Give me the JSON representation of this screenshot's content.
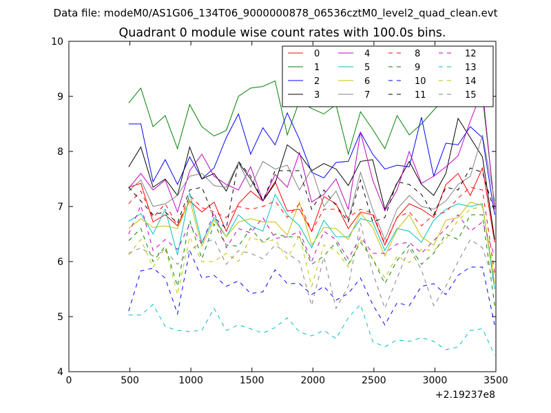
{
  "figure": {
    "suptitle": "Data file: modeM0/AS1G06_134T06_9000000878_06536cztM0_level2_quad_clean.evt"
  },
  "chart_data": {
    "type": "line",
    "title": "Quadrant 0 module wise count rates with 100.0s bins.",
    "xlabel": "",
    "ylabel": "",
    "xlim": [
      0,
      3500
    ],
    "ylim": [
      4,
      10
    ],
    "x_ticks": [
      0,
      500,
      1000,
      1500,
      2000,
      2500,
      3000,
      3500
    ],
    "y_ticks": [
      4,
      5,
      6,
      7,
      8,
      9,
      10
    ],
    "x_offset_label": "+2.19237e8",
    "grid": false,
    "legend": {
      "placement": "top-right",
      "columns": 4
    },
    "x": [
      490,
      590,
      690,
      790,
      890,
      990,
      1090,
      1190,
      1290,
      1390,
      1490,
      1590,
      1690,
      1790,
      1890,
      1990,
      2090,
      2190,
      2290,
      2390,
      2490,
      2590,
      2690,
      2790,
      2890,
      2990,
      3090,
      3190,
      3290,
      3390,
      3490
    ],
    "series": [
      {
        "name": "0",
        "color": "#ff0000",
        "dash": "solid",
        "values": [
          7.35,
          7.42,
          6.72,
          6.85,
          6.65,
          7.1,
          6.9,
          7.08,
          6.55,
          7.05,
          7.28,
          7.1,
          7.45,
          6.92,
          6.95,
          6.55,
          7.18,
          7.05,
          6.6,
          6.9,
          6.85,
          6.3,
          6.8,
          7.05,
          6.95,
          6.8,
          7.4,
          7.6,
          7.2,
          7.7,
          6.35
        ]
      },
      {
        "name": "1",
        "color": "#008000",
        "dash": "solid",
        "values": [
          8.88,
          9.15,
          8.45,
          8.65,
          8.05,
          8.85,
          8.45,
          8.28,
          8.38,
          9.0,
          9.15,
          9.18,
          9.28,
          8.3,
          8.92,
          8.78,
          8.68,
          8.85,
          7.95,
          8.72,
          8.4,
          8.05,
          8.65,
          8.3,
          8.5,
          8.75,
          8.98,
          9.05,
          9.08,
          9.0,
          7.0
        ]
      },
      {
        "name": "2",
        "color": "#0000ff",
        "dash": "solid",
        "values": [
          8.5,
          8.5,
          7.45,
          7.85,
          7.4,
          7.9,
          7.5,
          7.7,
          8.25,
          8.68,
          7.95,
          8.43,
          8.12,
          8.7,
          8.22,
          7.62,
          7.52,
          7.8,
          7.82,
          8.35,
          7.95,
          7.68,
          7.75,
          7.72,
          8.62,
          7.55,
          8.15,
          8.12,
          8.45,
          8.25,
          6.85
        ]
      },
      {
        "name": "3",
        "color": "#000000",
        "dash": "solid",
        "values": [
          7.72,
          8.08,
          7.35,
          7.5,
          7.2,
          8.08,
          7.5,
          7.6,
          7.28,
          7.8,
          7.5,
          7.1,
          7.42,
          8.12,
          7.95,
          7.65,
          7.78,
          7.68,
          7.38,
          7.82,
          7.85,
          6.95,
          7.42,
          7.82,
          7.4,
          7.2,
          7.6,
          8.6,
          8.25,
          7.9,
          6.4
        ]
      },
      {
        "name": "4",
        "color": "#bf00bf",
        "dash": "solid",
        "values": [
          7.33,
          7.6,
          7.3,
          7.48,
          6.9,
          7.65,
          7.95,
          7.55,
          7.4,
          7.3,
          7.72,
          7.1,
          7.58,
          7.35,
          7.98,
          7.08,
          7.22,
          7.5,
          6.95,
          8.35,
          7.48,
          6.92,
          7.3,
          8.0,
          7.42,
          7.55,
          7.72,
          7.92,
          8.55,
          9.12,
          6.95
        ]
      },
      {
        "name": "5",
        "color": "#00bfbf",
        "dash": "solid",
        "values": [
          6.73,
          6.87,
          6.5,
          6.95,
          6.12,
          7.25,
          6.35,
          6.8,
          6.45,
          6.85,
          6.65,
          6.55,
          7.22,
          6.85,
          6.65,
          6.25,
          6.75,
          6.45,
          6.45,
          6.78,
          6.72,
          6.2,
          6.6,
          6.55,
          6.35,
          6.75,
          6.95,
          7.05,
          7.0,
          7.05,
          5.5
        ]
      },
      {
        "name": "6",
        "color": "#bfbf00",
        "dash": "solid",
        "values": [
          6.6,
          6.78,
          6.62,
          6.65,
          6.6,
          7.12,
          6.28,
          6.75,
          6.45,
          6.72,
          6.78,
          6.72,
          6.72,
          6.48,
          7.08,
          6.3,
          6.62,
          6.6,
          6.4,
          6.88,
          6.62,
          6.1,
          6.58,
          6.85,
          6.45,
          6.3,
          6.75,
          6.8,
          7.08,
          7.02,
          5.6
        ]
      },
      {
        "name": "7",
        "color": "#808080",
        "dash": "solid",
        "values": [
          7.28,
          7.48,
          7.0,
          7.05,
          7.2,
          7.55,
          7.6,
          7.38,
          7.35,
          7.8,
          7.35,
          7.82,
          7.68,
          7.75,
          7.3,
          7.68,
          7.0,
          7.28,
          6.75,
          7.62,
          6.95,
          6.4,
          6.95,
          7.2,
          7.0,
          6.95,
          7.1,
          7.4,
          7.55,
          8.3,
          7.1
        ]
      },
      {
        "name": "8",
        "color": "#ff0000",
        "dash": "dashed",
        "values": [
          7.05,
          7.28,
          6.8,
          7.05,
          6.65,
          7.2,
          6.98,
          6.9,
          6.8,
          7.0,
          6.95,
          7.0,
          7.1,
          6.8,
          7.05,
          6.55,
          6.95,
          6.95,
          6.8,
          6.95,
          6.88,
          6.32,
          6.8,
          6.9,
          6.65,
          6.85,
          6.9,
          7.15,
          7.35,
          7.3,
          5.8
        ]
      },
      {
        "name": "9",
        "color": "#008000",
        "dash": "dashed",
        "values": [
          6.38,
          6.6,
          6.0,
          6.28,
          5.55,
          6.75,
          6.05,
          6.68,
          6.3,
          6.28,
          6.6,
          6.35,
          6.5,
          6.45,
          6.45,
          5.95,
          6.1,
          6.35,
          5.95,
          6.35,
          6.05,
          5.6,
          6.02,
          6.3,
          5.95,
          6.15,
          6.5,
          6.4,
          6.85,
          6.85,
          5.2
        ]
      },
      {
        "name": "10",
        "color": "#0000ff",
        "dash": "dashed",
        "values": [
          5.1,
          5.83,
          5.88,
          5.7,
          5.05,
          6.2,
          5.7,
          5.75,
          5.55,
          5.65,
          5.42,
          5.45,
          5.85,
          5.6,
          5.6,
          5.4,
          5.55,
          5.3,
          5.42,
          5.7,
          5.22,
          4.85,
          5.25,
          5.2,
          5.55,
          5.6,
          5.4,
          5.75,
          5.9,
          5.9,
          4.85
        ]
      },
      {
        "name": "11",
        "color": "#000000",
        "dash": "dashed",
        "values": [
          7.35,
          7.1,
          6.85,
          6.9,
          6.7,
          7.3,
          7.35,
          6.8,
          6.6,
          7.82,
          7.55,
          7.1,
          7.65,
          7.65,
          7.65,
          6.95,
          7.3,
          7.02,
          6.72,
          7.48,
          6.72,
          6.8,
          7.45,
          7.4,
          7.22,
          6.85,
          7.35,
          7.3,
          7.7,
          7.62,
          6.9
        ]
      },
      {
        "name": "12",
        "color": "#bf00bf",
        "dash": "dashed",
        "values": [
          6.5,
          7.02,
          6.2,
          6.4,
          6.22,
          6.68,
          6.32,
          6.9,
          6.25,
          6.6,
          6.52,
          6.8,
          6.42,
          6.45,
          6.55,
          6.0,
          6.55,
          6.4,
          6.05,
          6.45,
          6.15,
          6.15,
          6.32,
          6.35,
          6.15,
          6.38,
          6.6,
          6.85,
          6.55,
          6.72,
          6.1
        ]
      },
      {
        "name": "13",
        "color": "#00bfbf",
        "dash": "dashed",
        "values": [
          5.03,
          5.03,
          5.22,
          4.82,
          4.75,
          4.73,
          4.75,
          5.15,
          4.75,
          4.85,
          4.78,
          4.7,
          4.8,
          4.98,
          4.72,
          4.65,
          4.75,
          4.6,
          4.98,
          5.22,
          4.55,
          4.45,
          4.58,
          4.55,
          4.62,
          4.55,
          4.4,
          4.45,
          4.75,
          4.78,
          4.3
        ]
      },
      {
        "name": "14",
        "color": "#bfbf00",
        "dash": "dashed",
        "values": [
          6.12,
          6.4,
          5.9,
          6.25,
          5.4,
          6.45,
          6.0,
          6.0,
          6.15,
          6.0,
          6.45,
          6.35,
          6.4,
          6.05,
          6.48,
          5.55,
          6.3,
          6.2,
          5.9,
          6.4,
          6.05,
          5.7,
          6.1,
          5.98,
          6.22,
          6.2,
          6.4,
          6.75,
          6.95,
          7.0,
          5.7
        ]
      },
      {
        "name": "15",
        "color": "#808080",
        "dash": "dashed",
        "values": [
          6.15,
          6.25,
          6.1,
          6.2,
          5.95,
          6.2,
          6.35,
          6.4,
          5.95,
          6.2,
          6.15,
          6.05,
          6.3,
          6.15,
          6.0,
          5.2,
          6.08,
          5.15,
          5.55,
          6.7,
          5.8,
          5.15,
          5.7,
          6.25,
          5.85,
          5.2,
          5.55,
          6.0,
          6.4,
          6.25,
          5.6
        ]
      }
    ]
  }
}
